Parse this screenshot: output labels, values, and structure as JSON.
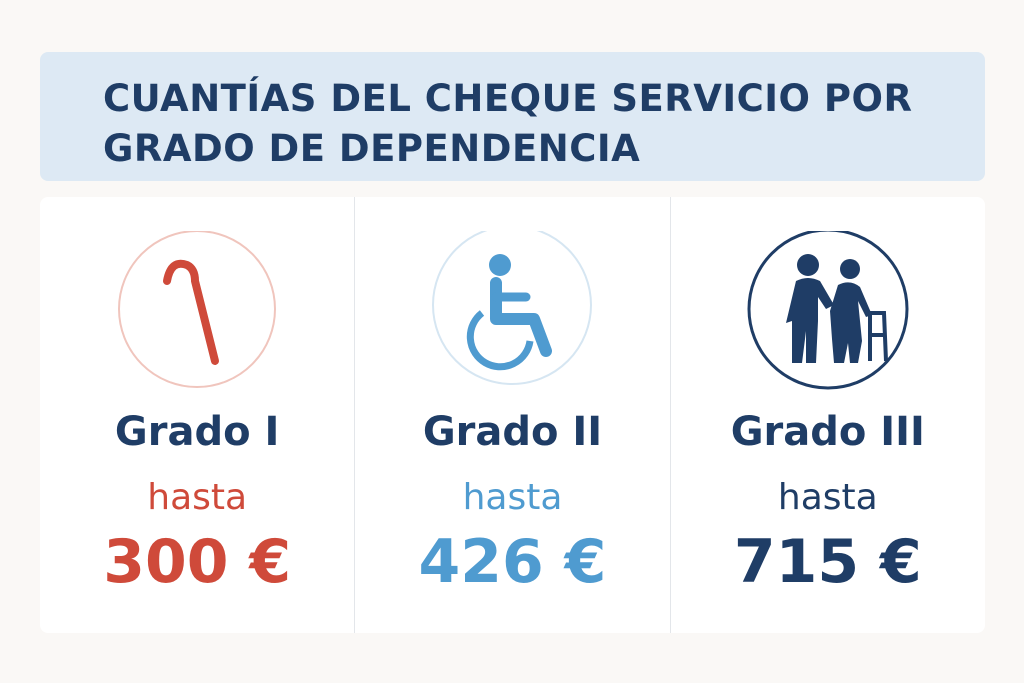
{
  "header": {
    "title": "CUANTÍAS DEL CHEQUE SERVICIO POR GRADO DE DEPENDENCIA"
  },
  "cards": [
    {
      "grade": "Grado I",
      "prefix": "hasta",
      "amount": "300 €"
    },
    {
      "grade": "Grado II",
      "prefix": "hasta",
      "amount": "426 €"
    },
    {
      "grade": "Grado III",
      "prefix": "hasta",
      "amount": "715 €"
    }
  ]
}
